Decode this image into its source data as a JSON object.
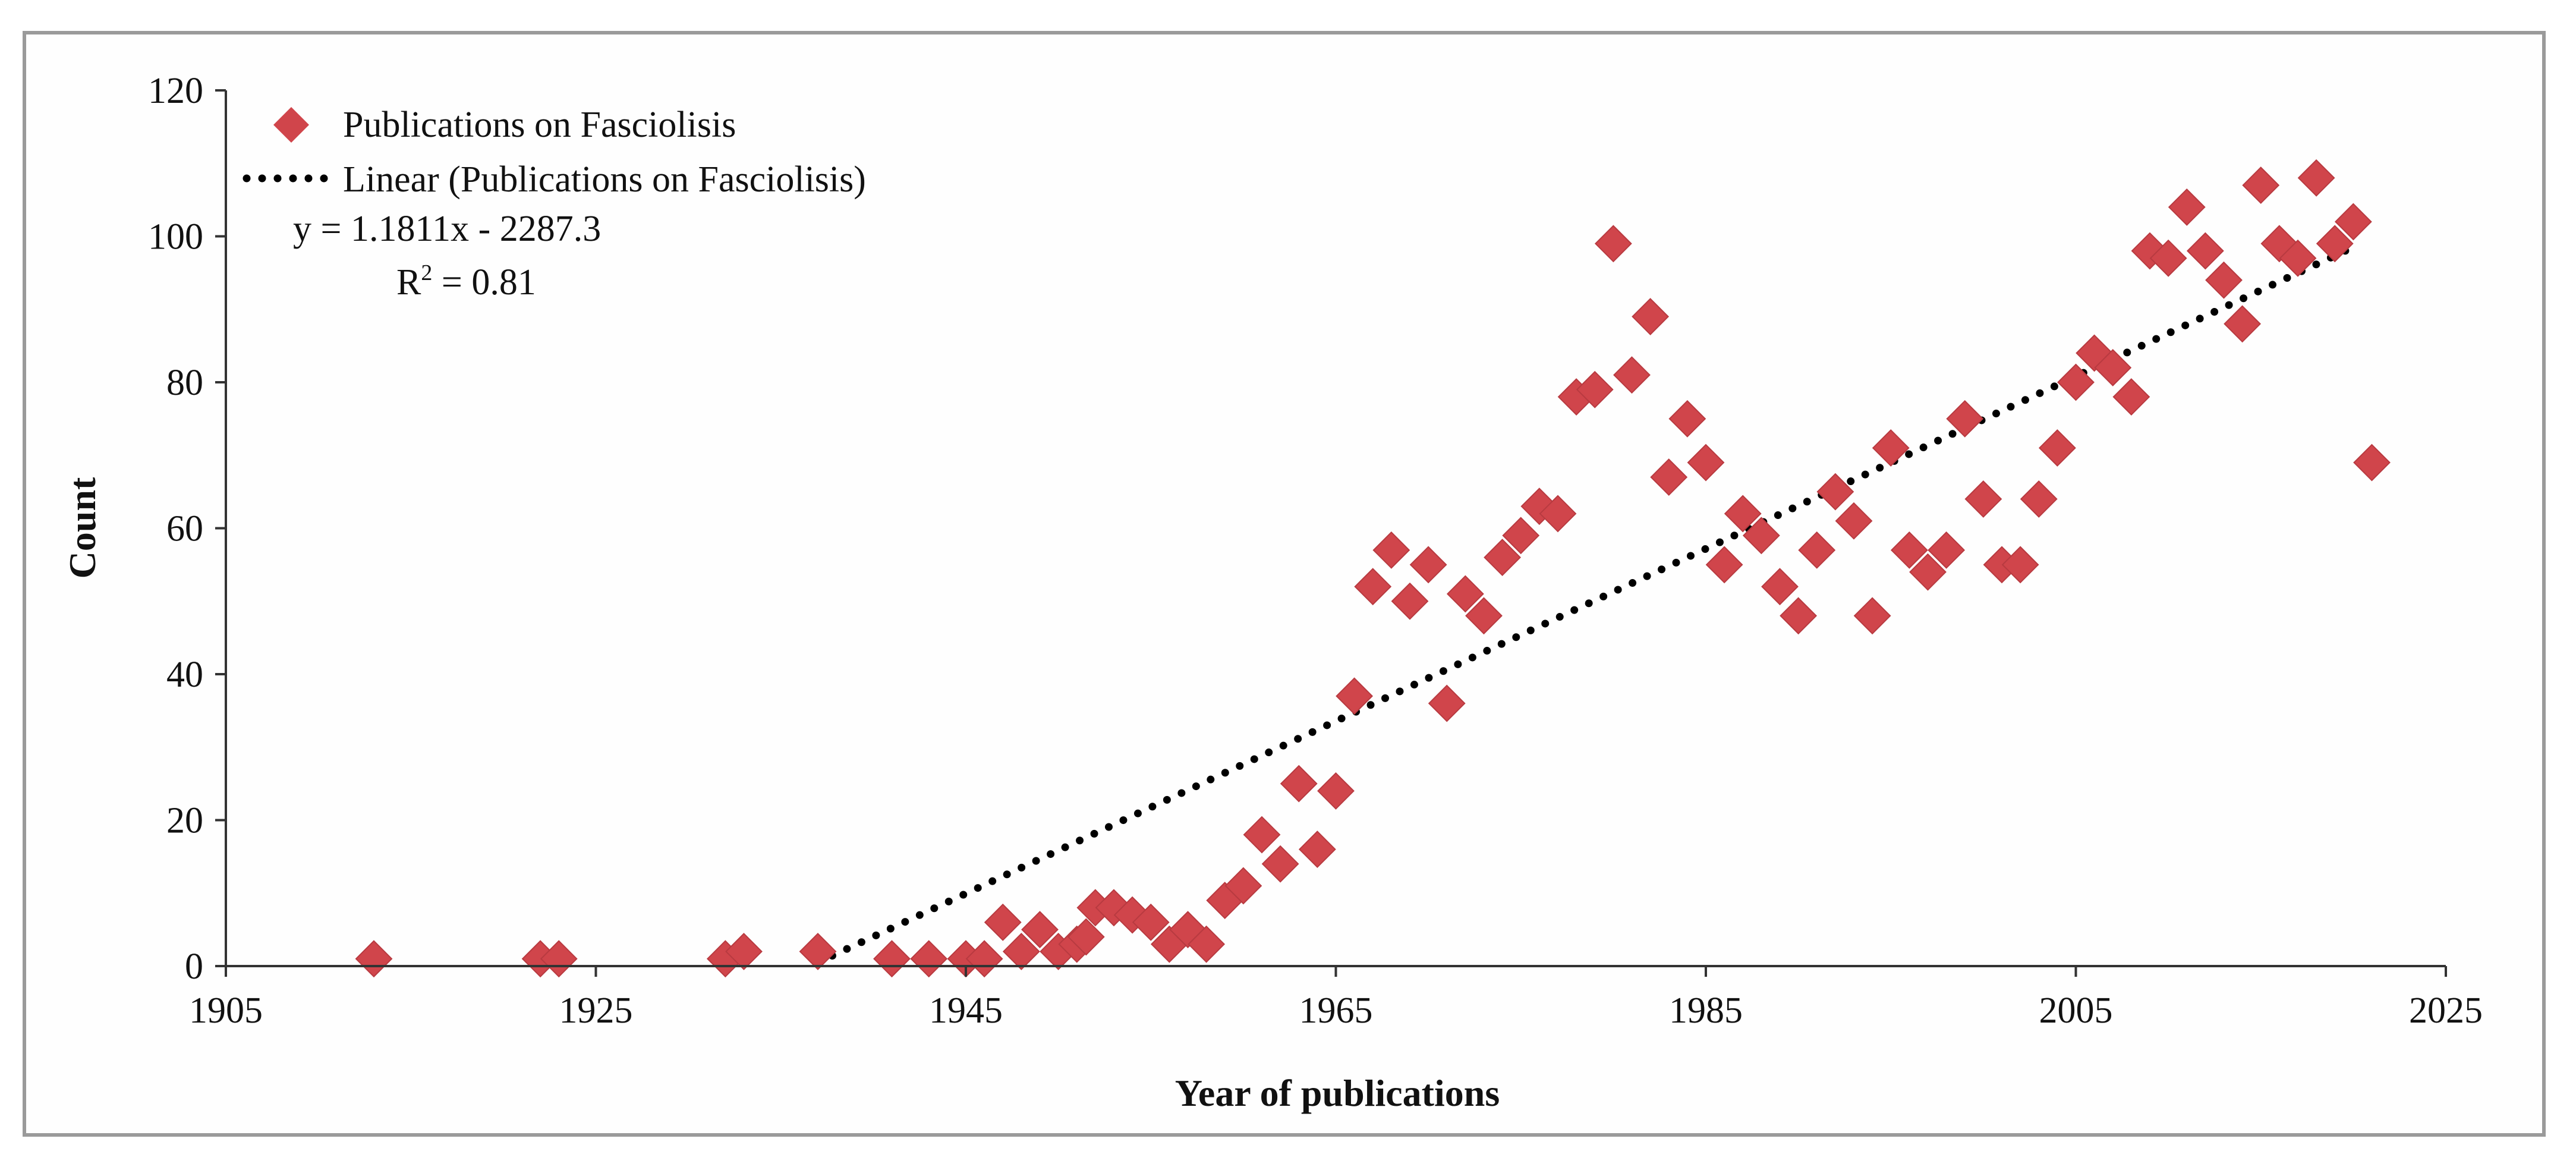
{
  "chart_data": {
    "type": "scatter",
    "title": "",
    "xlabel": "Year of publications",
    "ylabel": "Count",
    "xlim": [
      1905,
      2025
    ],
    "ylim": [
      0,
      120
    ],
    "x_ticks": [
      "1905",
      "1925",
      "1945",
      "1965",
      "1985",
      "2005",
      "2025"
    ],
    "y_ticks": [
      "0",
      "20",
      "40",
      "60",
      "80",
      "100",
      "120"
    ],
    "grid": false,
    "legend_position": "top-left",
    "marker_color": "#d0454b",
    "trend_color": "#000000",
    "series": [
      {
        "name": "Publications on Fasciolisis",
        "marker": "diamond",
        "points": [
          [
            1913,
            1
          ],
          [
            1922,
            1
          ],
          [
            1923,
            1
          ],
          [
            1932,
            1
          ],
          [
            1933,
            2
          ],
          [
            1937,
            2
          ],
          [
            1941,
            1
          ],
          [
            1943,
            1
          ],
          [
            1945,
            1
          ],
          [
            1946,
            1
          ],
          [
            1947,
            6
          ],
          [
            1948,
            2
          ],
          [
            1949,
            5
          ],
          [
            1950,
            2
          ],
          [
            1951,
            3
          ],
          [
            1951.5,
            4
          ],
          [
            1952,
            8
          ],
          [
            1953,
            8
          ],
          [
            1954,
            7
          ],
          [
            1955,
            6
          ],
          [
            1956,
            3
          ],
          [
            1957,
            5
          ],
          [
            1958,
            3
          ],
          [
            1959,
            9
          ],
          [
            1960,
            11
          ],
          [
            1961,
            18
          ],
          [
            1962,
            14
          ],
          [
            1963,
            25
          ],
          [
            1964,
            16
          ],
          [
            1965,
            24
          ],
          [
            1966,
            37
          ],
          [
            1967,
            52
          ],
          [
            1968,
            57
          ],
          [
            1969,
            50
          ],
          [
            1970,
            55
          ],
          [
            1971,
            36
          ],
          [
            1972,
            51
          ],
          [
            1973,
            48
          ],
          [
            1974,
            56
          ],
          [
            1975,
            59
          ],
          [
            1976,
            63
          ],
          [
            1977,
            62
          ],
          [
            1978,
            78
          ],
          [
            1979,
            79
          ],
          [
            1980,
            99
          ],
          [
            1981,
            81
          ],
          [
            1982,
            89
          ],
          [
            1983,
            67
          ],
          [
            1984,
            75
          ],
          [
            1985,
            69
          ],
          [
            1986,
            55
          ],
          [
            1987,
            62
          ],
          [
            1988,
            59
          ],
          [
            1989,
            52
          ],
          [
            1990,
            48
          ],
          [
            1991,
            57
          ],
          [
            1992,
            65
          ],
          [
            1993,
            61
          ],
          [
            1994,
            48
          ],
          [
            1995,
            71
          ],
          [
            1996,
            57
          ],
          [
            1997,
            54
          ],
          [
            1998,
            57
          ],
          [
            1999,
            75
          ],
          [
            2000,
            64
          ],
          [
            2001,
            55
          ],
          [
            2002,
            55
          ],
          [
            2003,
            64
          ],
          [
            2004,
            71
          ],
          [
            2005,
            80
          ],
          [
            2006,
            84
          ],
          [
            2007,
            82
          ],
          [
            2008,
            78
          ],
          [
            2009,
            98
          ],
          [
            2010,
            97
          ],
          [
            2011,
            104
          ],
          [
            2012,
            98
          ],
          [
            2013,
            94
          ],
          [
            2014,
            88
          ],
          [
            2015,
            107
          ],
          [
            2016,
            99
          ],
          [
            2017,
            97
          ],
          [
            2018,
            108
          ],
          [
            2019,
            99
          ],
          [
            2020,
            102
          ],
          [
            2021,
            69
          ]
        ]
      }
    ],
    "trendline": {
      "name": "Linear (Publications on Fasciolisis)",
      "type": "linear",
      "slope": 1.1811,
      "intercept": -2287.3,
      "x_range": [
        1937,
        2020
      ],
      "style": "dotted"
    },
    "annotations": {
      "equation": "y = 1.1811x - 2287.3",
      "r2_label": "R",
      "r2_sup": "2",
      "r2_value": " = 0.81"
    }
  }
}
